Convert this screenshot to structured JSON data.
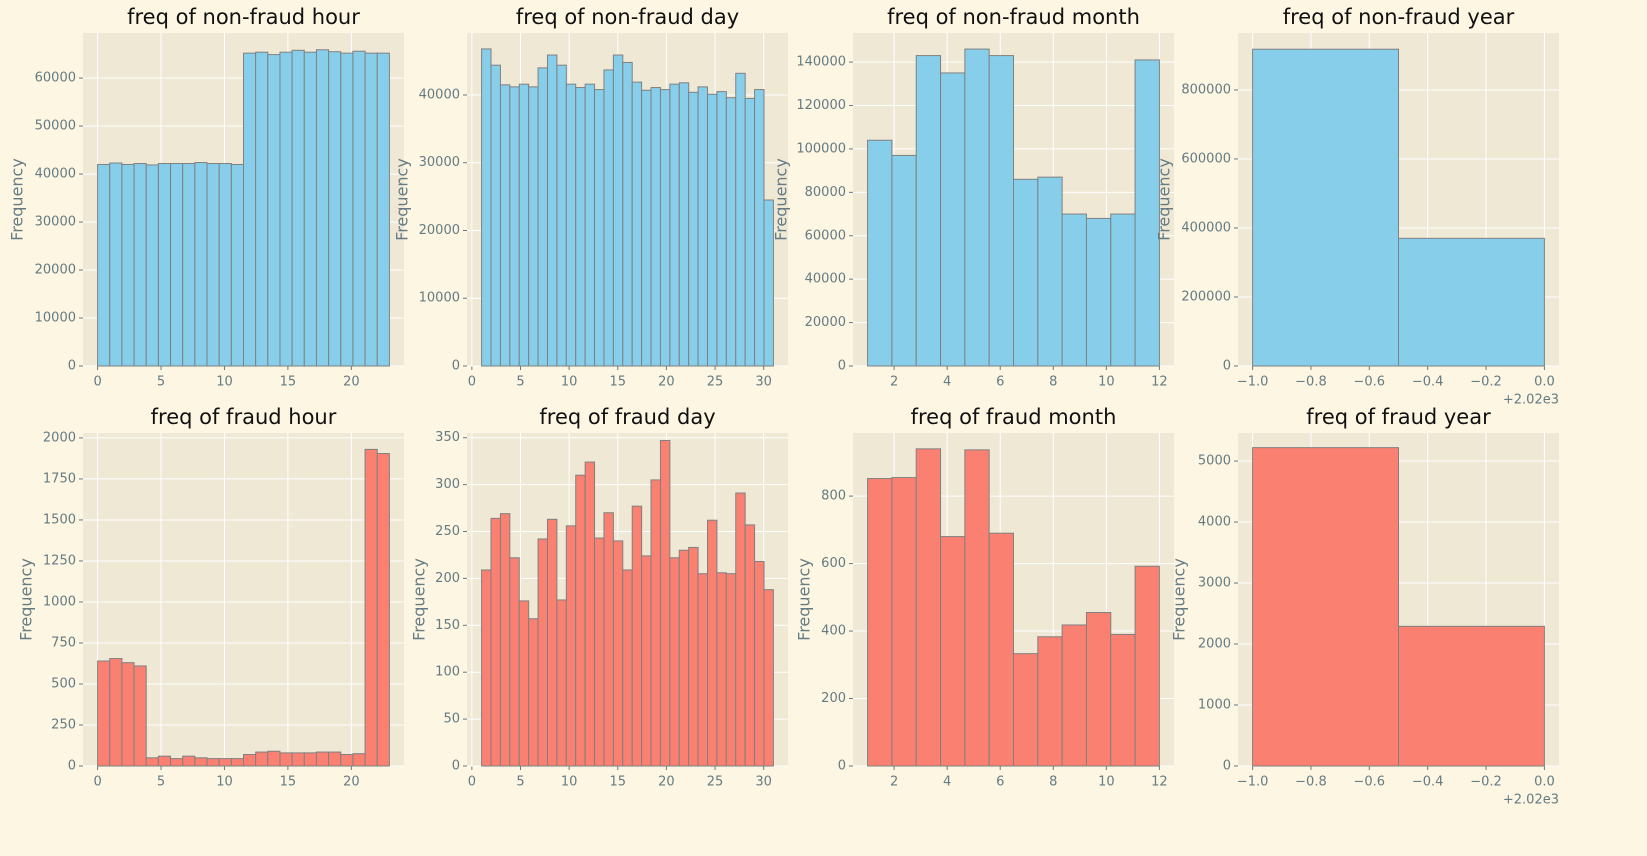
{
  "chart_data": [
    {
      "type": "histogram",
      "title": "freq of non-fraud hour",
      "ylabel": "Frequency",
      "color": "#87ceeb",
      "edgecolor": "#808080",
      "grid": true,
      "bins": [
        0,
        0.958,
        1.917,
        2.875,
        3.833,
        4.792,
        5.75,
        6.708,
        7.667,
        8.625,
        9.583,
        10.542,
        11.5,
        12.458,
        13.417,
        14.375,
        15.333,
        16.292,
        17.25,
        18.208,
        19.167,
        20.125,
        21.083,
        22.042,
        23
      ],
      "values": [
        42000,
        42300,
        42000,
        42200,
        41900,
        42200,
        42200,
        42200,
        42400,
        42200,
        42200,
        42000,
        65200,
        65400,
        64900,
        65400,
        65800,
        65400,
        65900,
        65500,
        65200,
        65600,
        65200,
        65200
      ],
      "xlim": [
        -1.15,
        24.15
      ],
      "xticks": [
        0,
        5,
        10,
        15,
        20
      ],
      "ylim": [
        0,
        69400
      ],
      "yticks": [
        0,
        10000,
        20000,
        30000,
        40000,
        50000,
        60000
      ]
    },
    {
      "type": "histogram",
      "title": "freq of non-fraud day",
      "ylabel": "Frequency",
      "color": "#87ceeb",
      "edgecolor": "#808080",
      "grid": true,
      "bins": [
        1,
        1.968,
        2.935,
        3.903,
        4.871,
        5.839,
        6.806,
        7.774,
        8.742,
        9.71,
        10.677,
        11.645,
        12.613,
        13.581,
        14.548,
        15.516,
        16.484,
        17.452,
        18.419,
        19.387,
        20.355,
        21.323,
        22.29,
        23.258,
        24.226,
        25.194,
        26.161,
        27.129,
        28.097,
        29.065,
        30.032,
        31
      ],
      "values": [
        46800,
        44400,
        41500,
        41200,
        41600,
        41200,
        44000,
        45900,
        44400,
        41600,
        41100,
        41600,
        40800,
        43700,
        45900,
        44800,
        41900,
        40700,
        41100,
        40800,
        41600,
        41800,
        40400,
        41200,
        40100,
        40500,
        39600,
        43200,
        39500,
        40800,
        24500
      ],
      "xlim": [
        -0.5,
        32.5
      ],
      "xticks": [
        0,
        5,
        10,
        15,
        20,
        25,
        30
      ],
      "ylim": [
        0,
        49150
      ],
      "yticks": [
        0,
        10000,
        20000,
        30000,
        40000
      ]
    },
    {
      "type": "histogram",
      "title": "freq of non-fraud month",
      "ylabel": "Frequency",
      "color": "#87ceeb",
      "edgecolor": "#808080",
      "grid": true,
      "bins": [
        1,
        1.917,
        2.833,
        3.75,
        4.667,
        5.583,
        6.5,
        7.417,
        8.333,
        9.25,
        10.167,
        11.083,
        12
      ],
      "values": [
        104000,
        97000,
        143000,
        135000,
        146000,
        143000,
        86000,
        87000,
        70000,
        68000,
        70000,
        141000
      ],
      "xlim": [
        0.45,
        12.55
      ],
      "xticks": [
        2,
        4,
        6,
        8,
        10,
        12
      ],
      "ylim": [
        0,
        153400
      ],
      "yticks": [
        0,
        20000,
        40000,
        60000,
        80000,
        100000,
        120000,
        140000
      ]
    },
    {
      "type": "histogram",
      "title": "freq of non-fraud year",
      "ylabel": "Frequency",
      "color": "#87ceeb",
      "edgecolor": "#808080",
      "grid": true,
      "bins": [
        2019,
        2019.5,
        2020
      ],
      "values": [
        918000,
        370000
      ],
      "xlim": [
        2018.95,
        2020.05
      ],
      "xticks": [
        {
          "value": 2019,
          "label": "−1.0"
        },
        {
          "value": 2019.2,
          "label": "−0.8"
        },
        {
          "value": 2019.4,
          "label": "−0.6"
        },
        {
          "value": 2019.6,
          "label": "−0.4"
        },
        {
          "value": 2019.8,
          "label": "−0.2"
        },
        {
          "value": 2020,
          "label": "0.0"
        }
      ],
      "x_offset_label": "+2.02e3",
      "ylim": [
        0,
        965000
      ],
      "yticks": [
        0,
        200000,
        400000,
        600000,
        800000
      ]
    },
    {
      "type": "histogram",
      "title": "freq of fraud hour",
      "ylabel": "Frequency",
      "color": "#fa8072",
      "edgecolor": "#808080",
      "grid": true,
      "bins": [
        0,
        0.958,
        1.917,
        2.875,
        3.833,
        4.792,
        5.75,
        6.708,
        7.667,
        8.625,
        9.583,
        10.542,
        11.5,
        12.458,
        13.417,
        14.375,
        15.333,
        16.292,
        17.25,
        18.208,
        19.167,
        20.125,
        21.083,
        22.042,
        23
      ],
      "values": [
        640,
        655,
        630,
        610,
        50,
        60,
        45,
        60,
        50,
        45,
        45,
        45,
        70,
        85,
        90,
        80,
        80,
        80,
        85,
        85,
        70,
        75,
        1930,
        1905
      ],
      "xlim": [
        -1.15,
        24.15
      ],
      "xticks": [
        0,
        5,
        10,
        15,
        20
      ],
      "ylim": [
        0,
        2030
      ],
      "yticks": [
        0,
        250,
        500,
        750,
        1000,
        1250,
        1500,
        1750,
        2000
      ]
    },
    {
      "type": "histogram",
      "title": "freq of fraud day",
      "ylabel": "Frequency",
      "color": "#fa8072",
      "edgecolor": "#808080",
      "grid": true,
      "bins": [
        1,
        1.968,
        2.935,
        3.903,
        4.871,
        5.839,
        6.806,
        7.774,
        8.742,
        9.71,
        10.677,
        11.645,
        12.613,
        13.581,
        14.548,
        15.516,
        16.484,
        17.452,
        18.419,
        19.387,
        20.355,
        21.323,
        22.29,
        23.258,
        24.226,
        25.194,
        26.161,
        27.129,
        28.097,
        29.065,
        30.032,
        31
      ],
      "values": [
        209,
        264,
        269,
        222,
        176,
        157,
        242,
        263,
        177,
        256,
        310,
        324,
        243,
        270,
        240,
        209,
        277,
        224,
        305,
        347,
        222,
        230,
        233,
        205,
        262,
        206,
        205,
        291,
        257,
        218,
        188
      ],
      "xlim": [
        -0.5,
        32.5
      ],
      "xticks": [
        0,
        5,
        10,
        15,
        20,
        25,
        30
      ],
      "ylim": [
        0,
        355
      ],
      "yticks": [
        0,
        50,
        100,
        150,
        200,
        250,
        300,
        350
      ]
    },
    {
      "type": "histogram",
      "title": "freq of fraud month",
      "ylabel": "Frequency",
      "color": "#fa8072",
      "edgecolor": "#808080",
      "grid": true,
      "bins": [
        1,
        1.917,
        2.833,
        3.75,
        4.667,
        5.583,
        6.5,
        7.417,
        8.333,
        9.25,
        10.167,
        11.083,
        12
      ],
      "values": [
        852,
        855,
        940,
        680,
        937,
        690,
        333,
        383,
        418,
        455,
        390,
        592
      ],
      "xlim": [
        0.45,
        12.55
      ],
      "xticks": [
        2,
        4,
        6,
        8,
        10,
        12
      ],
      "ylim": [
        0,
        987
      ],
      "yticks": [
        0,
        200,
        400,
        600,
        800
      ]
    },
    {
      "type": "histogram",
      "title": "freq of fraud year",
      "ylabel": "Frequency",
      "color": "#fa8072",
      "edgecolor": "#808080",
      "grid": true,
      "bins": [
        2019,
        2019.5,
        2020
      ],
      "values": [
        5220,
        2290
      ],
      "xlim": [
        2018.95,
        2020.05
      ],
      "xticks": [
        {
          "value": 2019,
          "label": "−1.0"
        },
        {
          "value": 2019.2,
          "label": "−0.8"
        },
        {
          "value": 2019.4,
          "label": "−0.6"
        },
        {
          "value": 2019.6,
          "label": "−0.4"
        },
        {
          "value": 2019.8,
          "label": "−0.2"
        },
        {
          "value": 2020,
          "label": "0.0"
        }
      ],
      "x_offset_label": "+2.02e3",
      "ylim": [
        0,
        5460
      ],
      "yticks": [
        0,
        1000,
        2000,
        3000,
        4000,
        5000
      ]
    }
  ]
}
